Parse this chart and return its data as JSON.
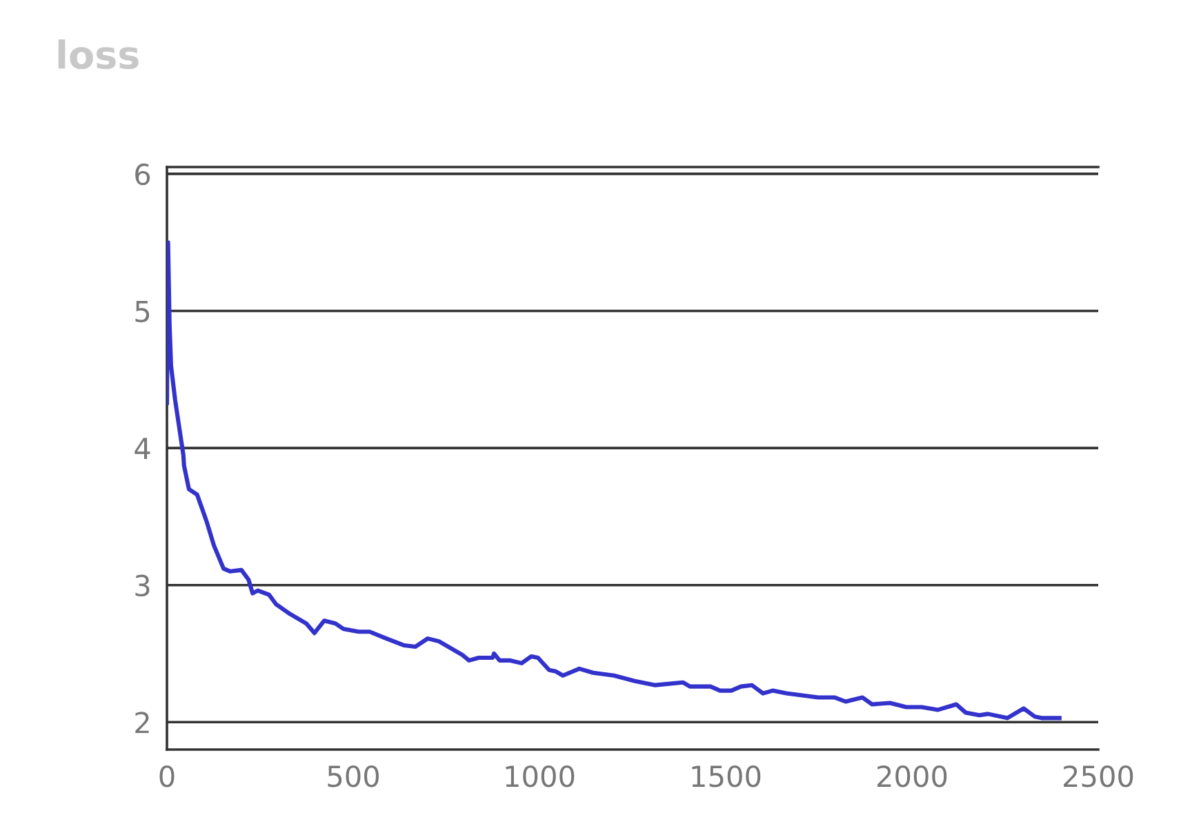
{
  "chart_data": {
    "type": "line",
    "title": "loss",
    "series": [
      {
        "color": "#3333cc",
        "x": [
          0,
          3,
          7,
          11,
          22,
          33,
          44,
          46,
          59,
          81,
          107,
          126,
          152,
          170,
          200,
          219,
          230,
          244,
          274,
          293,
          330,
          374,
          396,
          422,
          452,
          474,
          515,
          544,
          589,
          637,
          667,
          700,
          730,
          793,
          811,
          837,
          874,
          878,
          893,
          922,
          952,
          978,
          996,
          1026,
          1044,
          1063,
          1107,
          1144,
          1200,
          1256,
          1311,
          1385,
          1404,
          1459,
          1485,
          1515,
          1541,
          1570,
          1600,
          1626,
          1663,
          1748,
          1793,
          1822,
          1867,
          1893,
          1941,
          1985,
          2026,
          2070,
          2119,
          2144,
          2181,
          2204,
          2256,
          2300,
          2330,
          2348,
          2396
        ],
        "values": [
          4.33,
          5.5,
          4.9,
          4.6,
          4.35,
          4.15,
          3.95,
          3.87,
          3.7,
          3.66,
          3.46,
          3.29,
          3.12,
          3.1,
          3.11,
          3.04,
          2.94,
          2.96,
          2.93,
          2.86,
          2.79,
          2.72,
          2.65,
          2.74,
          2.72,
          2.68,
          2.66,
          2.66,
          2.61,
          2.56,
          2.55,
          2.61,
          2.59,
          2.49,
          2.45,
          2.47,
          2.47,
          2.5,
          2.45,
          2.45,
          2.43,
          2.48,
          2.47,
          2.38,
          2.37,
          2.34,
          2.39,
          2.36,
          2.34,
          2.3,
          2.27,
          2.29,
          2.26,
          2.26,
          2.23,
          2.23,
          2.26,
          2.27,
          2.21,
          2.23,
          2.21,
          2.18,
          2.18,
          2.15,
          2.18,
          2.13,
          2.14,
          2.11,
          2.11,
          2.09,
          2.13,
          2.07,
          2.05,
          2.06,
          2.03,
          2.1,
          2.04,
          2.03,
          2.03
        ]
      }
    ],
    "xlim": [
      0,
      2500
    ],
    "xticks": [
      0,
      500,
      1000,
      1500,
      2000,
      2500
    ],
    "ylim": [
      1.8,
      6.05
    ],
    "yticks": [
      2,
      3,
      4,
      5,
      6
    ],
    "grid": "y",
    "marker": "none",
    "line_style": "solid"
  }
}
